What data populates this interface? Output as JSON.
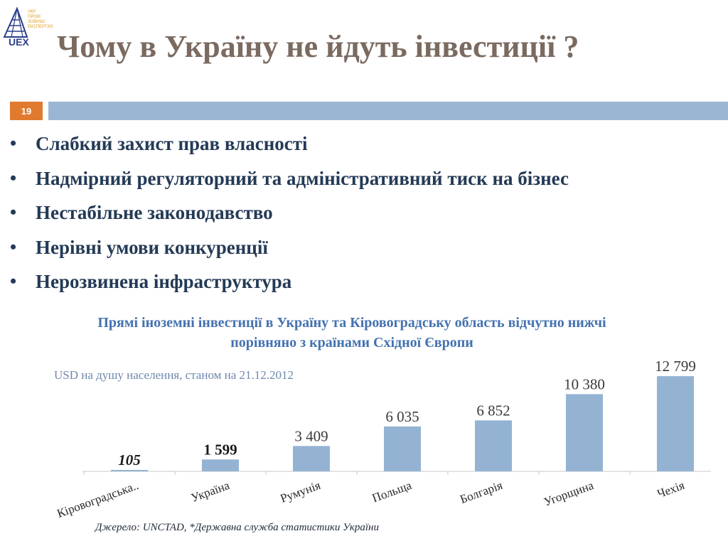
{
  "logo": {
    "abbr": "UEX",
    "text_lines": [
      "УКР",
      "ПРОМ",
      "ЗОВНІШ",
      "ЕКСПЕРТИЗА"
    ]
  },
  "title": "Чому в Україну не йдуть інвестиції ?",
  "slide_number": "19",
  "bullets": [
    "Слабкий захист прав власності",
    "Надмірний регуляторний та адміністративний тиск на бізнес",
    "Нестабільне законодавство",
    "Нерівні умови конкуренції",
    "Нерозвинена інфраструктура"
  ],
  "subtitle_lines": [
    "Прямі іноземні інвестиції в Україну та Кіровоградську область відчутно нижчі",
    "порівняно з країнами Східної Європи"
  ],
  "chart_unit": "USD на душу населення, станом на 21.12.2012",
  "source": "Джерело: UNCTAD,   *Державна служба статистики України",
  "colors": {
    "bar": "#94b3d3",
    "title": "#7a6a60",
    "bullet": "#243a56",
    "subtitle": "#4472b0",
    "slide_number_bg": "#e07a2e"
  },
  "chart_data": {
    "type": "bar",
    "categories": [
      "Кіровоградська..",
      "Україна",
      "Румунія",
      "Польща",
      "Болгарія",
      "Угорщина",
      "Чехія"
    ],
    "values": [
      105,
      1599,
      3409,
      6035,
      6852,
      10380,
      12799
    ],
    "value_labels": [
      "105",
      "1 599",
      "3 409",
      "6 035",
      "6 852",
      "10 380",
      "12 799"
    ],
    "title": "",
    "xlabel": "",
    "ylabel": "",
    "ylim": [
      0,
      13000
    ],
    "grid": false
  }
}
